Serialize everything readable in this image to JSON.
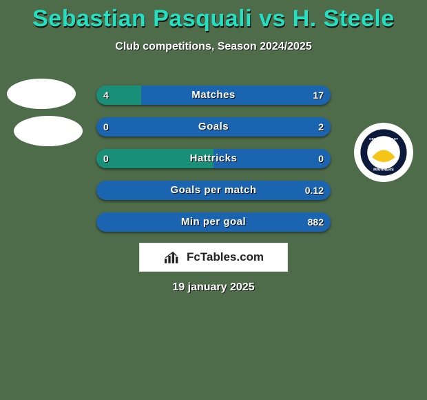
{
  "background_color": "#4e6b4a",
  "title_color": "#24e0c2",
  "title": "Sebastian Pasquali vs H. Steele",
  "subtitle": "Club competitions, Season 2024/2025",
  "date": "19 january 2025",
  "branding_text": "FcTables.com",
  "bar_colors": {
    "left": "#188f76",
    "right": "#1a64b0"
  },
  "stats": [
    {
      "label": "Matches",
      "left_val": "4",
      "right_val": "17",
      "left_pct": 19,
      "right_pct": 81
    },
    {
      "label": "Goals",
      "left_val": "0",
      "right_val": "2",
      "left_pct": 0,
      "right_pct": 100
    },
    {
      "label": "Hattricks",
      "left_val": "0",
      "right_val": "0",
      "left_pct": 50,
      "right_pct": 50
    },
    {
      "label": "Goals per match",
      "left_val": "",
      "right_val": "0.12",
      "left_pct": 0,
      "right_pct": 100
    },
    {
      "label": "Min per goal",
      "left_val": "",
      "right_val": "882",
      "left_pct": 0,
      "right_pct": 100
    }
  ],
  "right_club": {
    "name": "Central Coast Mariners",
    "logo_bg": "#0b1a3a",
    "logo_accent": "#f5c518"
  }
}
